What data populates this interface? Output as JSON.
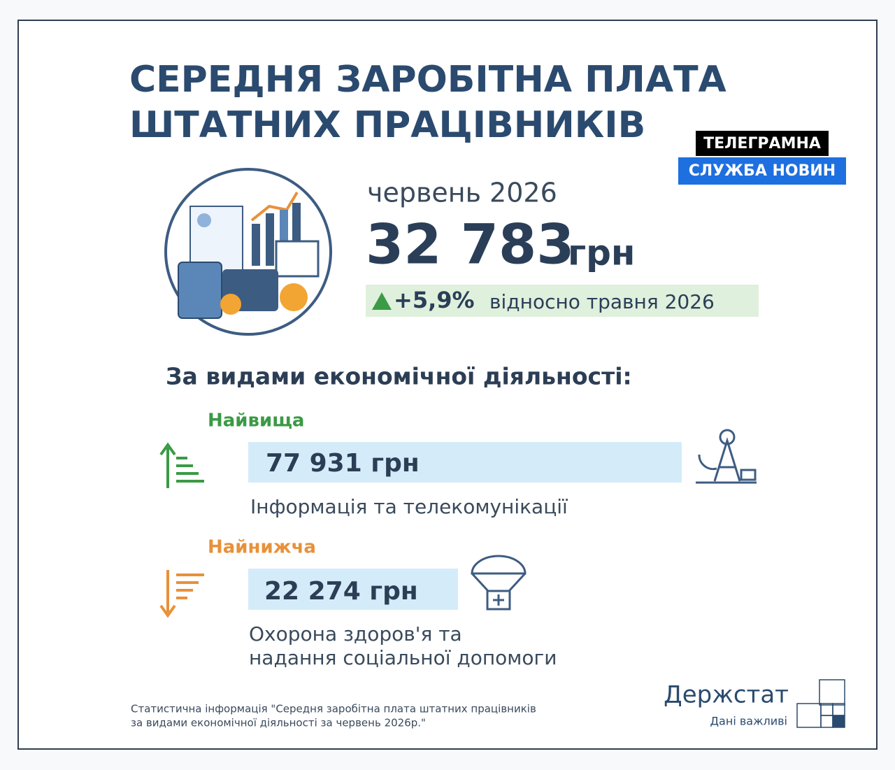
{
  "title": [
    "СЕРЕДНЯ ЗАРОБІТНА ПЛАТА",
    "ШТАТНИХ ПРАЦІВНИКІВ"
  ],
  "badge": [
    "ТЕЛЕГРАМНА",
    "СЛУЖБА НОВИН"
  ],
  "period": "червень 2026",
  "average": {
    "value": "32 783",
    "unit": "грн"
  },
  "change": {
    "value": "+5,9%",
    "text": "відносно травня 2026"
  },
  "section": "За видами економічної діяльності:",
  "highest": {
    "label": "Найвища",
    "value": "77 931 грн",
    "activity": "Інформація та телекомунікації"
  },
  "lowest": {
    "label": "Найнижча",
    "value": "22 274 грн",
    "activity": [
      "Охорона здоров'я та",
      "надання соціальної допомоги"
    ]
  },
  "footnote": [
    "Статистична інформація \"Середня заробітна плата штатних працівників",
    "за видами економічної діяльності за червень 2026р.\""
  ],
  "logo": {
    "name": "Держстат",
    "slogan": "Дані важливі"
  }
}
